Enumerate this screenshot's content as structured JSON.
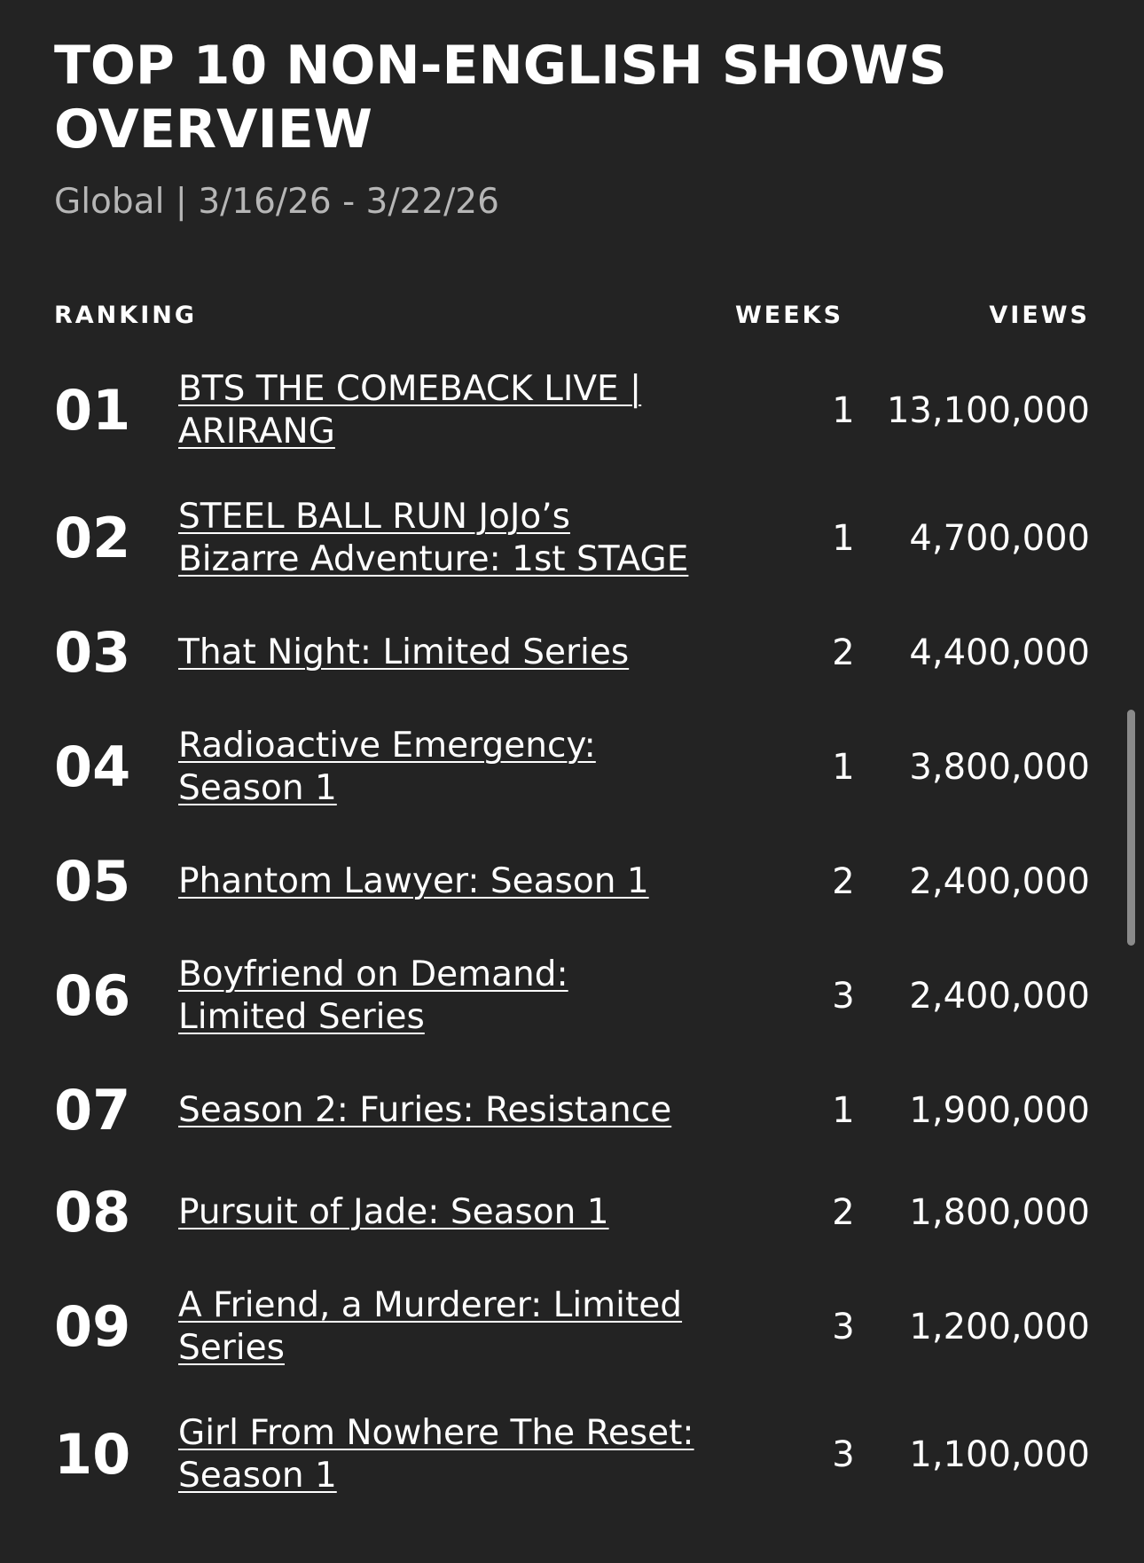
{
  "header": {
    "title": "TOP 10 NON-ENGLISH SHOWS OVERVIEW",
    "subtitle": "Global | 3/16/26 - 3/22/26"
  },
  "columns": {
    "ranking": "RANKING",
    "weeks": "WEEKS",
    "views": "VIEWS"
  },
  "rows": [
    {
      "rank": "01",
      "title": "BTS THE COMEBACK LIVE | ARIRANG",
      "weeks": "1",
      "views": "13,100,000"
    },
    {
      "rank": "02",
      "title": "STEEL BALL RUN JoJo’s Bizarre Adventure: 1st STAGE",
      "weeks": "1",
      "views": "4,700,000"
    },
    {
      "rank": "03",
      "title": "That Night: Limited Series",
      "weeks": "2",
      "views": "4,400,000"
    },
    {
      "rank": "04",
      "title": "Radioactive Emergency: Season 1",
      "weeks": "1",
      "views": "3,800,000"
    },
    {
      "rank": "05",
      "title": "Phantom Lawyer: Season 1",
      "weeks": "2",
      "views": "2,400,000"
    },
    {
      "rank": "06",
      "title": "Boyfriend on Demand: Limited Series",
      "weeks": "3",
      "views": "2,400,000"
    },
    {
      "rank": "07",
      "title": "Season 2: Furies: Resistance",
      "weeks": "1",
      "views": "1,900,000"
    },
    {
      "rank": "08",
      "title": "Pursuit of Jade: Season 1",
      "weeks": "2",
      "views": "1,800,000"
    },
    {
      "rank": "09",
      "title": "A Friend, a Murderer: Limited Series",
      "weeks": "3",
      "views": "1,200,000"
    },
    {
      "rank": "10",
      "title": "Girl From Nowhere The Reset: Season 1",
      "weeks": "3",
      "views": "1,100,000"
    }
  ]
}
